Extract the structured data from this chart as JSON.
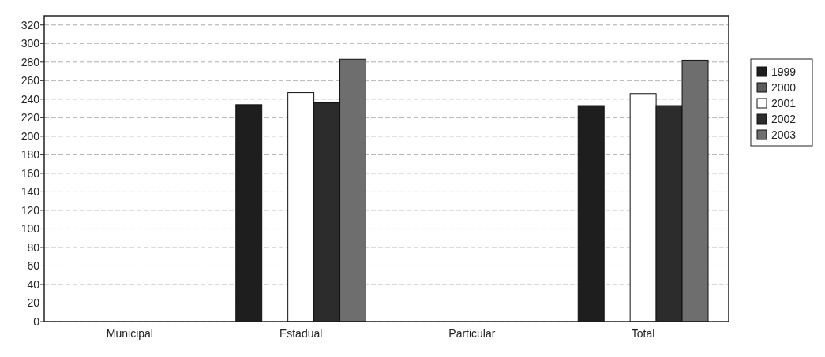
{
  "chart_data": {
    "type": "bar",
    "categories": [
      "Municipal",
      "Estadual",
      "Particular",
      "Total"
    ],
    "series": [
      {
        "name": "1999",
        "color": "#1e1e1e",
        "values": [
          null,
          234,
          null,
          233
        ]
      },
      {
        "name": "2000",
        "color": "#5c5c5c",
        "values": [
          null,
          null,
          null,
          null
        ]
      },
      {
        "name": "2001",
        "color": "#ffffff",
        "values": [
          null,
          247,
          null,
          246
        ]
      },
      {
        "name": "2002",
        "color": "#2c2c2c",
        "values": [
          null,
          236,
          null,
          233
        ]
      },
      {
        "name": "2003",
        "color": "#6e6e6e",
        "values": [
          null,
          283,
          null,
          282
        ]
      }
    ],
    "ylim": [
      0,
      330
    ],
    "yticks": [
      0,
      20,
      40,
      60,
      80,
      100,
      120,
      140,
      160,
      180,
      200,
      220,
      240,
      260,
      280,
      300,
      320
    ],
    "grid": "y",
    "legend": "right"
  }
}
